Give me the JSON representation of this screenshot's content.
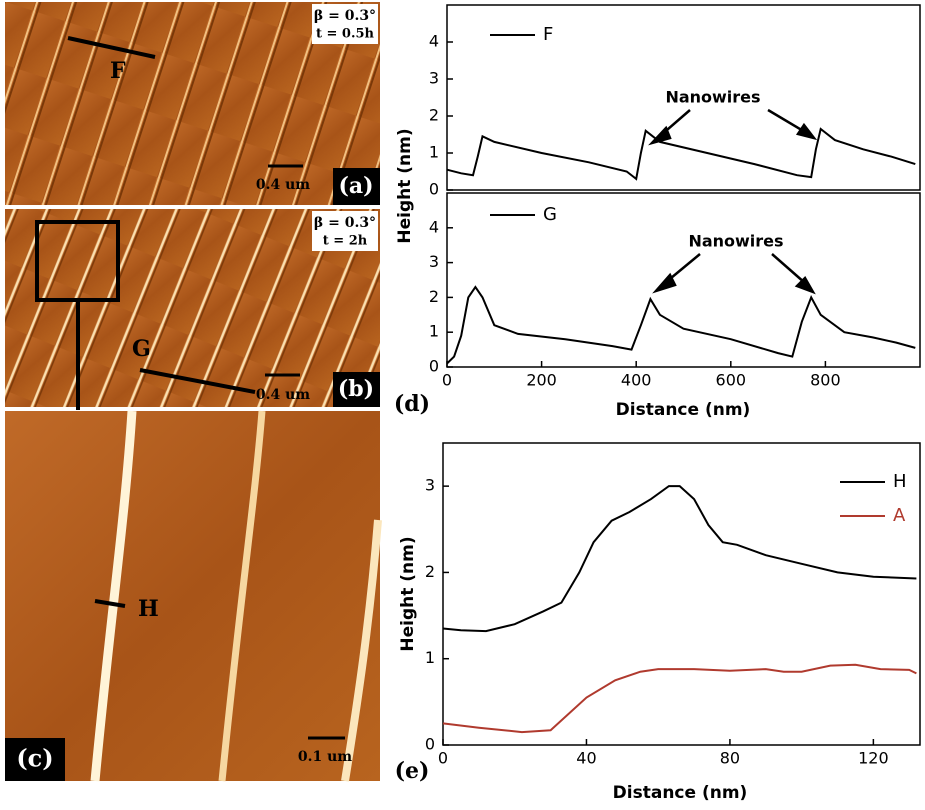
{
  "panels": {
    "a": {
      "beta": "β = 0.3°",
      "time": "t = 0.5h",
      "line": "F",
      "scale": "0.4 um",
      "label": "(a)"
    },
    "b": {
      "beta": "β = 0.3°",
      "time": "t = 2h",
      "line": "G",
      "scale": "0.4 um",
      "label": "(b)"
    },
    "c": {
      "line": "H",
      "scale": "0.1 um",
      "label": "(c)"
    }
  },
  "chart_data": [
    {
      "type": "line",
      "ylabel": "Height (nm)",
      "annotation": "Nanowires",
      "xlim": [
        0,
        1000
      ],
      "ylim": [
        0,
        5
      ],
      "yticks": [
        0,
        1,
        2,
        3,
        4
      ],
      "series": [
        {
          "name": "F",
          "color": "#000000",
          "x": [
            0,
            30,
            55,
            65,
            75,
            100,
            200,
            300,
            380,
            400,
            410,
            420,
            450,
            550,
            650,
            740,
            770,
            780,
            790,
            820,
            880,
            940,
            990
          ],
          "values": [
            0.55,
            0.45,
            0.4,
            0.9,
            1.45,
            1.3,
            1.0,
            0.75,
            0.5,
            0.3,
            1.0,
            1.6,
            1.3,
            1.0,
            0.7,
            0.4,
            0.35,
            1.1,
            1.65,
            1.35,
            1.1,
            0.9,
            0.7
          ]
        }
      ]
    },
    {
      "type": "line",
      "xlabel": "Distance (nm)",
      "annotation": "Nanowires",
      "panel": "(d)",
      "xlim": [
        0,
        1000
      ],
      "ylim": [
        0,
        5
      ],
      "xticks": [
        0,
        200,
        400,
        600,
        800
      ],
      "yticks": [
        0,
        1,
        2,
        3,
        4
      ],
      "series": [
        {
          "name": "G",
          "color": "#000000",
          "x": [
            0,
            15,
            30,
            45,
            60,
            75,
            100,
            150,
            250,
            350,
            390,
            410,
            430,
            450,
            500,
            600,
            700,
            730,
            750,
            770,
            790,
            840,
            900,
            950,
            990
          ],
          "values": [
            0.1,
            0.3,
            0.9,
            2.0,
            2.3,
            2.0,
            1.2,
            0.95,
            0.8,
            0.6,
            0.5,
            1.2,
            1.95,
            1.5,
            1.1,
            0.8,
            0.4,
            0.3,
            1.3,
            2.0,
            1.5,
            1.0,
            0.85,
            0.7,
            0.55
          ]
        }
      ]
    },
    {
      "type": "line",
      "xlabel": "Distance (nm)",
      "ylabel": "Height (nm)",
      "panel": "(e)",
      "xlim": [
        0,
        133
      ],
      "ylim": [
        0,
        3.5
      ],
      "xticks": [
        0,
        40,
        80,
        120
      ],
      "yticks": [
        0,
        1,
        2,
        3
      ],
      "series": [
        {
          "name": "H",
          "color": "#000000",
          "x": [
            0,
            5,
            12,
            20,
            28,
            33,
            38,
            42,
            47,
            52,
            58,
            63,
            66,
            70,
            74,
            78,
            82,
            90,
            100,
            110,
            120,
            132
          ],
          "values": [
            1.35,
            1.33,
            1.32,
            1.4,
            1.55,
            1.65,
            2.0,
            2.35,
            2.6,
            2.7,
            2.85,
            3.0,
            3.0,
            2.85,
            2.55,
            2.35,
            2.32,
            2.2,
            2.1,
            2.0,
            1.95,
            1.93
          ]
        },
        {
          "name": "A",
          "color": "#b03a2e",
          "x": [
            0,
            10,
            22,
            30,
            40,
            48,
            55,
            60,
            70,
            80,
            90,
            95,
            100,
            108,
            115,
            122,
            130,
            132
          ],
          "values": [
            0.25,
            0.2,
            0.15,
            0.17,
            0.55,
            0.75,
            0.85,
            0.88,
            0.88,
            0.86,
            0.88,
            0.85,
            0.85,
            0.92,
            0.93,
            0.88,
            0.87,
            0.83
          ]
        }
      ]
    }
  ]
}
